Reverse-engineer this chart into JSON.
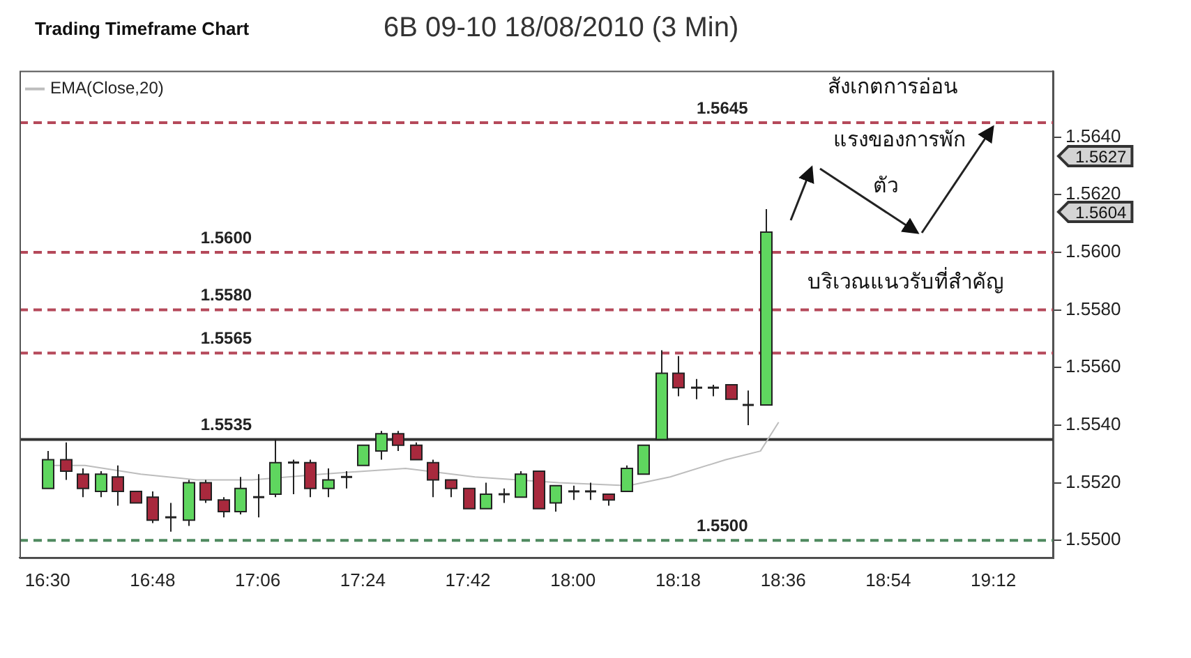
{
  "chart_data": {
    "type": "candlestick",
    "title": "Trading Timeframe Chart",
    "subtitle": "6B 09-10  18/08/2010 (3 Min)",
    "x": [
      16.5,
      16.55,
      16.6,
      16.65,
      16.7,
      16.75,
      16.8,
      16.85,
      16.9,
      16.95,
      17,
      17.05,
      17.1,
      17.15,
      17.2,
      17.25,
      17.3,
      17.35,
      17.4,
      17.45,
      17.5,
      17.55,
      17.6,
      17.65,
      17.7,
      17.75,
      17.8,
      17.85,
      17.9,
      17.95,
      18,
      18.05,
      18.1,
      18.15,
      18.2,
      18.25,
      18.3,
      18.35,
      18.4,
      18.45,
      18.5,
      18.55
    ],
    "ohlc": [
      [
        1.5518,
        1.5531,
        1.5518,
        1.5528
      ],
      [
        1.5528,
        1.5534,
        1.5521,
        1.5524
      ],
      [
        1.5523,
        1.5525,
        1.5515,
        1.5518
      ],
      [
        1.5517,
        1.5524,
        1.5515,
        1.5523
      ],
      [
        1.5522,
        1.5526,
        1.5512,
        1.5517
      ],
      [
        1.5517,
        1.5517,
        1.5513,
        1.5513
      ],
      [
        1.5515,
        1.5517,
        1.5506,
        1.5507
      ],
      [
        1.5508,
        1.5513,
        1.5503,
        1.5508
      ],
      [
        1.5507,
        1.5521,
        1.5505,
        1.552
      ],
      [
        1.552,
        1.5521,
        1.5513,
        1.5514
      ],
      [
        1.5514,
        1.5515,
        1.5508,
        1.551
      ],
      [
        1.551,
        1.5522,
        1.5509,
        1.5518
      ],
      [
        1.5515,
        1.5523,
        1.5508,
        1.5515
      ],
      [
        1.5516,
        1.5535,
        1.5515,
        1.5527
      ],
      [
        1.5527,
        1.5528,
        1.5516,
        1.5527
      ],
      [
        1.5527,
        1.5528,
        1.5515,
        1.5518
      ],
      [
        1.5518,
        1.5525,
        1.5515,
        1.5521
      ],
      [
        1.5522,
        1.5524,
        1.5518,
        1.5522
      ],
      [
        1.5526,
        1.5533,
        1.5526,
        1.5533
      ],
      [
        1.5531,
        1.5538,
        1.5528,
        1.5537
      ],
      [
        1.5537,
        1.5538,
        1.5531,
        1.5533
      ],
      [
        1.5533,
        1.5534,
        1.5528,
        1.5528
      ],
      [
        1.5527,
        1.5528,
        1.5515,
        1.5521
      ],
      [
        1.5521,
        1.5521,
        1.5515,
        1.5518
      ],
      [
        1.5518,
        1.5518,
        1.5511,
        1.5511
      ],
      [
        1.5511,
        1.552,
        1.5511,
        1.5516
      ],
      [
        1.5516,
        1.5518,
        1.5513,
        1.5516
      ],
      [
        1.5515,
        1.5524,
        1.5515,
        1.5523
      ],
      [
        1.5524,
        1.5524,
        1.5511,
        1.5511
      ],
      [
        1.5513,
        1.5519,
        1.551,
        1.5519
      ],
      [
        1.5517,
        1.5519,
        1.5514,
        1.5517
      ],
      [
        1.5517,
        1.552,
        1.5514,
        1.5517
      ],
      [
        1.5516,
        1.5516,
        1.5512,
        1.5514
      ],
      [
        1.5517,
        1.5526,
        1.5517,
        1.5525
      ],
      [
        1.5523,
        1.5533,
        1.5523,
        1.5533
      ],
      [
        1.5535,
        1.5566,
        1.5535,
        1.5558
      ],
      [
        1.5558,
        1.5564,
        1.555,
        1.5553
      ],
      [
        1.5553,
        1.5556,
        1.5549,
        1.5553
      ],
      [
        1.5553,
        1.5554,
        1.555,
        1.5553
      ],
      [
        1.5554,
        1.5554,
        1.5549,
        1.5549
      ],
      [
        1.5547,
        1.5552,
        1.554,
        1.5547
      ],
      [
        1.5547,
        1.5615,
        1.5547,
        1.5607
      ]
    ],
    "series": [
      {
        "name": "EMA(Close,20)",
        "type": "line",
        "color": "#bdbdbd",
        "x": [
          16.508,
          16.607,
          16.766,
          16.925,
          17.084,
          17.283,
          17.522,
          17.72,
          17.959,
          18.158,
          18.277,
          18.436,
          18.535,
          18.587
        ],
        "values": [
          1.5526,
          1.5526,
          1.5523,
          1.5521,
          1.5521,
          1.5523,
          1.5525,
          1.5522,
          1.552,
          1.5519,
          1.5522,
          1.5528,
          1.5531,
          1.5541
        ]
      }
    ],
    "xlim": [
      16.42,
      19.37
    ],
    "xticks": [
      {
        "value": 16.5,
        "label": "16:30"
      },
      {
        "value": 16.8,
        "label": "16:48"
      },
      {
        "value": 17.1,
        "label": "17:06"
      },
      {
        "value": 17.4,
        "label": "17:24"
      },
      {
        "value": 17.7,
        "label": "17:42"
      },
      {
        "value": 18,
        "label": "18:00"
      },
      {
        "value": 18.3,
        "label": "18:18"
      },
      {
        "value": 18.6,
        "label": "18:36"
      },
      {
        "value": 18.9,
        "label": "18:54"
      },
      {
        "value": 19.2,
        "label": "19:12"
      }
    ],
    "ylim": [
      1.5494,
      1.5663
    ],
    "yticks": [
      {
        "value": 1.55,
        "label": "1.5500"
      },
      {
        "value": 1.552,
        "label": "1.5520"
      },
      {
        "value": 1.554,
        "label": "1.5540"
      },
      {
        "value": 1.556,
        "label": "1.5560"
      },
      {
        "value": 1.558,
        "label": "1.5580"
      },
      {
        "value": 1.56,
        "label": "1.5600"
      },
      {
        "value": 1.562,
        "label": "1.5620"
      },
      {
        "value": 1.564,
        "label": "1.5640"
      }
    ],
    "ref_lines": [
      {
        "axis": "y",
        "value": 1.5645,
        "label": "1.5645",
        "color": "#b5495a",
        "line_style": "dashed"
      },
      {
        "axis": "y",
        "value": 1.56,
        "label": "1.5600",
        "color": "#b5495a",
        "line_style": "dashed"
      },
      {
        "axis": "y",
        "value": 1.558,
        "label": "1.5580",
        "color": "#b5495a",
        "line_style": "dashed"
      },
      {
        "axis": "y",
        "value": 1.5565,
        "label": "1.5565",
        "color": "#b5495a",
        "line_style": "dashed"
      },
      {
        "axis": "y",
        "value": 1.5535,
        "label": "1.5535",
        "color": "#333333",
        "line_style": "solid"
      },
      {
        "axis": "y",
        "value": 1.55,
        "label": "1.5500",
        "color": "#4f8a60",
        "line_style": "dashed"
      }
    ],
    "annotations": [
      "สังเกตการอ่อน",
      "แรงของการพัก",
      "ตัว",
      {
        "text": "บริเวณแนวรับที่สำคัญ",
        "x": 18.95,
        "y": 1.56
      },
      "1.5627",
      "1.5604"
    ],
    "legend": "top left",
    "marker": "none",
    "line_style": "solid"
  }
}
